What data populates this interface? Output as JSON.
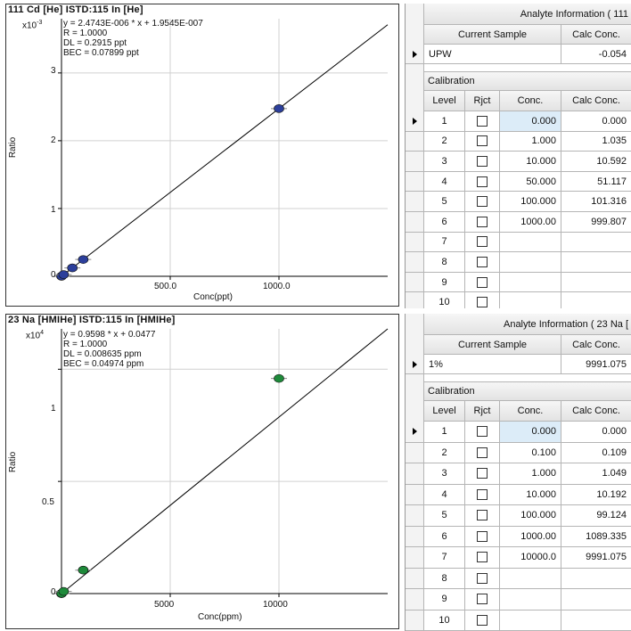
{
  "top": {
    "plot": {
      "title": "111 Cd [He] ISTD:115 In [He]",
      "multiplier_base": "x10",
      "multiplier_exp": "-3",
      "equation": "y = 2.4743E-006 * x + 1.9545E-007",
      "r": "R = 1.0000",
      "dl": "DL = 0.2915 ppt",
      "bec": "BEC = 0.07899 ppt",
      "ylabel": "Ratio",
      "xlabel": "Conc(ppt)",
      "y_ticks": [
        "3",
        "2",
        "1",
        "0"
      ],
      "x_ticks": [
        "500.0",
        "1000.0"
      ],
      "point_color": "#2c3f9b"
    },
    "table": {
      "analyte_header": "Analyte Information ( 111",
      "current_sample_label": "Current Sample",
      "calc_conc_label": "Calc Conc.",
      "sample_name": "UPW",
      "sample_value": "-0.054",
      "calibration_label": "Calibration",
      "col_level": "Level",
      "col_rjct": "Rjct",
      "col_conc": "Conc.",
      "col_calc": "Calc Conc.",
      "rows": [
        {
          "level": "1",
          "conc": "0.000",
          "calc": "0.000"
        },
        {
          "level": "2",
          "conc": "1.000",
          "calc": "1.035"
        },
        {
          "level": "3",
          "conc": "10.000",
          "calc": "10.592"
        },
        {
          "level": "4",
          "conc": "50.000",
          "calc": "51.117"
        },
        {
          "level": "5",
          "conc": "100.000",
          "calc": "101.316"
        },
        {
          "level": "6",
          "conc": "1000.00",
          "calc": "999.807"
        },
        {
          "level": "7",
          "conc": "",
          "calc": ""
        },
        {
          "level": "8",
          "conc": "",
          "calc": ""
        },
        {
          "level": "9",
          "conc": "",
          "calc": ""
        },
        {
          "level": "10",
          "conc": "",
          "calc": ""
        }
      ]
    }
  },
  "bottom": {
    "plot": {
      "title": "23 Na [HMIHe] ISTD:115 In [HMIHe]",
      "multiplier_base": "x10",
      "multiplier_exp": "4",
      "equation": "y = 0.9598 * x + 0.0477",
      "r": "R = 1.0000",
      "dl": "DL = 0.008635 ppm",
      "bec": "BEC = 0.04974 ppm",
      "ylabel": "Ratio",
      "xlabel": "Conc(ppm)",
      "y_ticks": [
        "1",
        "0.5",
        "0"
      ],
      "x_ticks": [
        "5000",
        "10000"
      ],
      "point_color": "#1e8a3a"
    },
    "table": {
      "analyte_header": "Analyte Information ( 23 Na [",
      "current_sample_label": "Current Sample",
      "calc_conc_label": "Calc Conc.",
      "sample_name": "1%",
      "sample_value": "9991.075",
      "calibration_label": "Calibration",
      "col_level": "Level",
      "col_rjct": "Rjct",
      "col_conc": "Conc.",
      "col_calc": "Calc Conc.",
      "rows": [
        {
          "level": "1",
          "conc": "0.000",
          "calc": "0.000"
        },
        {
          "level": "2",
          "conc": "0.100",
          "calc": "0.109"
        },
        {
          "level": "3",
          "conc": "1.000",
          "calc": "1.049"
        },
        {
          "level": "4",
          "conc": "10.000",
          "calc": "10.192"
        },
        {
          "level": "5",
          "conc": "100.000",
          "calc": "99.124"
        },
        {
          "level": "6",
          "conc": "1000.00",
          "calc": "1089.335"
        },
        {
          "level": "7",
          "conc": "10000.0",
          "calc": "9991.075"
        },
        {
          "level": "8",
          "conc": "",
          "calc": ""
        },
        {
          "level": "9",
          "conc": "",
          "calc": ""
        },
        {
          "level": "10",
          "conc": "",
          "calc": ""
        }
      ]
    }
  },
  "chart_data": [
    {
      "type": "scatter",
      "title": "111 Cd [He] ISTD:115 In [He]",
      "xlabel": "Conc(ppt)",
      "ylabel": "Ratio",
      "y_scale_note": "x10 -3",
      "xlim": [
        0,
        1500
      ],
      "ylim": [
        0,
        3.8
      ],
      "y_unit_multiplier": 0.001,
      "fit_line": {
        "slope": 2.4743e-06,
        "intercept": 1.9545e-07,
        "x_range": [
          0,
          1500
        ]
      },
      "points": [
        {
          "x": 0,
          "y": 0.0
        },
        {
          "x": 1,
          "y": 0.0026
        },
        {
          "x": 10,
          "y": 0.025
        },
        {
          "x": 50,
          "y": 0.124
        },
        {
          "x": 100,
          "y": 0.248
        },
        {
          "x": 1000,
          "y": 2.474
        }
      ]
    },
    {
      "type": "scatter",
      "title": "23 Na [HMIHe] ISTD:115 In [HMIHe]",
      "xlabel": "Conc(ppm)",
      "ylabel": "Ratio",
      "y_scale_note": "x10 4",
      "xlim": [
        0,
        15000
      ],
      "ylim": [
        0,
        1.18
      ],
      "y_unit_multiplier": 10000,
      "fit_line": {
        "slope": 0.9598,
        "intercept": 0.0477,
        "x_range": [
          0,
          15000
        ]
      },
      "points": [
        {
          "x": 0,
          "y": 0.0
        },
        {
          "x": 0.1,
          "y": 1e-05
        },
        {
          "x": 1,
          "y": 0.0001
        },
        {
          "x": 10,
          "y": 0.001
        },
        {
          "x": 100,
          "y": 0.0095
        },
        {
          "x": 1000,
          "y": 0.1045
        },
        {
          "x": 10000,
          "y": 0.959
        }
      ]
    }
  ]
}
